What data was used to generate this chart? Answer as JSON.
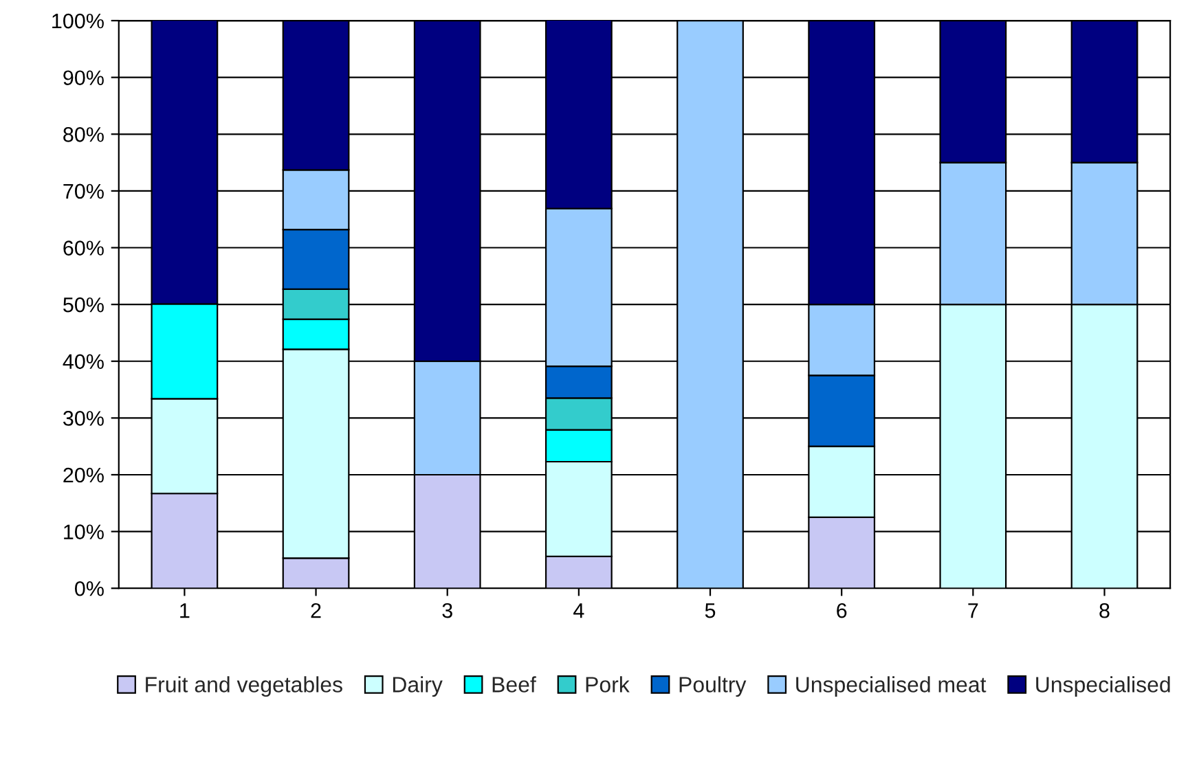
{
  "chart_data": {
    "type": "bar",
    "stacked": true,
    "categories": [
      "1",
      "2",
      "3",
      "4",
      "5",
      "6",
      "7",
      "8"
    ],
    "series": [
      {
        "name": "Fruit and vegetables",
        "color": "#c8c8f4",
        "values": [
          16.7,
          5.3,
          20,
          5.6,
          null,
          12.5,
          null,
          null
        ]
      },
      {
        "name": "Dairy",
        "color": "#ccffff",
        "values": [
          16.7,
          36.8,
          null,
          16.7,
          null,
          12.5,
          50,
          50
        ]
      },
      {
        "name": "Beef",
        "color": "#00ffff",
        "values": [
          16.7,
          5.3,
          null,
          5.6,
          null,
          null,
          null,
          null
        ]
      },
      {
        "name": "Pork",
        "color": "#33cccc",
        "values": [
          null,
          5.3,
          null,
          5.6,
          null,
          null,
          null,
          null
        ]
      },
      {
        "name": "Poultry",
        "color": "#0066cc",
        "values": [
          null,
          10.5,
          null,
          5.6,
          null,
          12.5,
          null,
          null
        ]
      },
      {
        "name": "Unspecialised meat",
        "color": "#99ccff",
        "values": [
          null,
          10.5,
          20,
          27.8,
          100,
          12.5,
          25,
          25
        ]
      },
      {
        "name": "Unspecialised",
        "color": "#000080",
        "values": [
          50,
          26.3,
          60,
          33.3,
          null,
          50,
          25,
          25
        ]
      }
    ],
    "ylim": [
      0,
      100
    ],
    "yticks": [
      {
        "value": 0,
        "label": "0%"
      },
      {
        "value": 10,
        "label": "10%"
      },
      {
        "value": 20,
        "label": "20%"
      },
      {
        "value": 30,
        "label": "30%"
      },
      {
        "value": 40,
        "label": "40%"
      },
      {
        "value": 50,
        "label": "50%"
      },
      {
        "value": 60,
        "label": "60%"
      },
      {
        "value": 70,
        "label": "70%"
      },
      {
        "value": 80,
        "label": "80%"
      },
      {
        "value": 90,
        "label": "90%"
      },
      {
        "value": 100,
        "label": "100%"
      }
    ],
    "grid": "y",
    "legend": "bottom"
  }
}
